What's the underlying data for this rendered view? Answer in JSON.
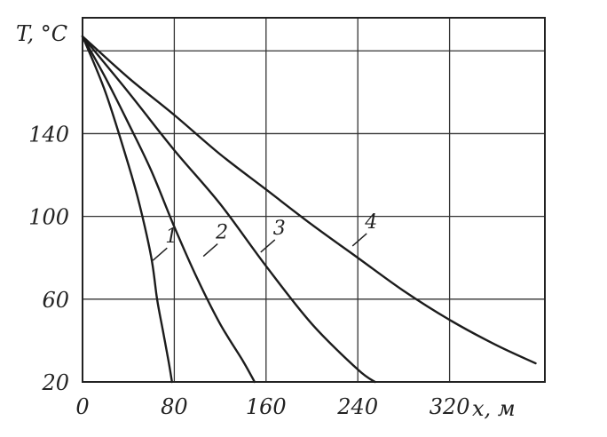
{
  "chart_data": {
    "type": "line",
    "ylabel": "T, °C",
    "xlabel": "x, м",
    "xlim": [
      0,
      400
    ],
    "ylim": [
      20,
      196
    ],
    "x_ticks": [
      0,
      80,
      160,
      240,
      320
    ],
    "y_ticks": [
      20,
      60,
      100,
      140
    ],
    "grid": true,
    "series": [
      {
        "name": "1",
        "points": [
          [
            0,
            187
          ],
          [
            20,
            160
          ],
          [
            40,
            125
          ],
          [
            50,
            105
          ],
          [
            60,
            80
          ],
          [
            65,
            60
          ],
          [
            70,
            45
          ],
          [
            75,
            30
          ],
          [
            78,
            20
          ]
        ]
      },
      {
        "name": "2",
        "points": [
          [
            0,
            187
          ],
          [
            20,
            167
          ],
          [
            40,
            145
          ],
          [
            60,
            122
          ],
          [
            80,
            95
          ],
          [
            100,
            70
          ],
          [
            120,
            48
          ],
          [
            140,
            30
          ],
          [
            150,
            20
          ]
        ]
      },
      {
        "name": "3",
        "points": [
          [
            0,
            187
          ],
          [
            40,
            160
          ],
          [
            80,
            132
          ],
          [
            120,
            106
          ],
          [
            160,
            76
          ],
          [
            200,
            48
          ],
          [
            240,
            26
          ],
          [
            255,
            20
          ]
        ]
      },
      {
        "name": "4",
        "points": [
          [
            0,
            187
          ],
          [
            40,
            167
          ],
          [
            80,
            149
          ],
          [
            120,
            130
          ],
          [
            160,
            113
          ],
          [
            200,
            96
          ],
          [
            240,
            80
          ],
          [
            280,
            64
          ],
          [
            320,
            50
          ],
          [
            360,
            38
          ],
          [
            395,
            29
          ]
        ]
      }
    ],
    "labels": [
      {
        "text": "1",
        "x": 66,
        "y": 83
      },
      {
        "text": "2",
        "x": 110,
        "y": 85
      },
      {
        "text": "3",
        "x": 160,
        "y": 87
      },
      {
        "text": "4",
        "x": 240,
        "y": 90
      }
    ]
  }
}
